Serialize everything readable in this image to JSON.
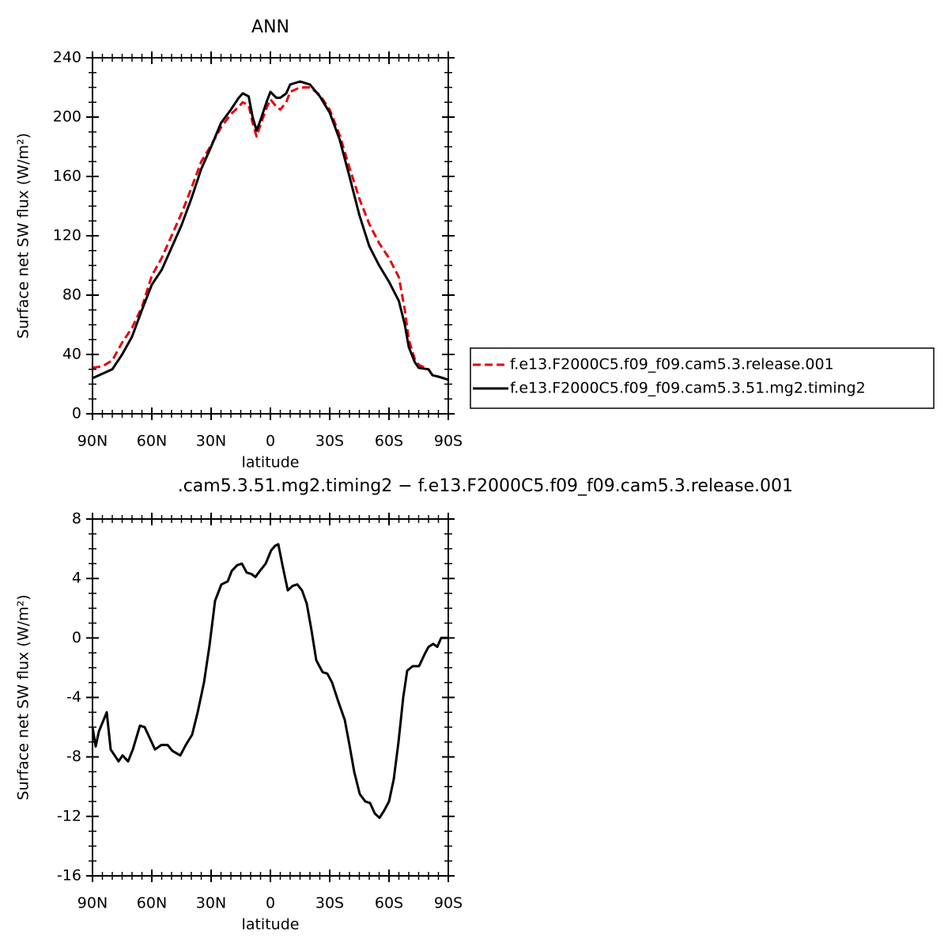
{
  "chart_data": [
    {
      "type": "line",
      "title": "ANN",
      "xlabel": "latitude",
      "ylabel": "Surface net SW flux (W/m²)",
      "x": [
        90,
        85,
        80,
        75,
        70,
        65,
        60,
        55,
        50,
        45,
        40,
        35,
        30,
        25,
        20,
        16,
        14,
        11,
        9,
        7,
        5,
        2,
        0,
        -3,
        -5,
        -8,
        -10,
        -15,
        -20,
        -25,
        -30,
        -35,
        -40,
        -45,
        -50,
        -55,
        -60,
        -65,
        -68,
        -70,
        -73,
        -75,
        -80,
        -82,
        -85,
        -90
      ],
      "series": [
        {
          "name": "f.e13.F2000C5.f09_f09.cam5.3.release.001",
          "color": "#e8000b",
          "dashed": true,
          "values": [
            31,
            32,
            36,
            48,
            58,
            72,
            93,
            105,
            120,
            135,
            152,
            170,
            181,
            193,
            202,
            207,
            210,
            208,
            196,
            187,
            195,
            206,
            212,
            207,
            205,
            210,
            217,
            220,
            220,
            215,
            205,
            188,
            166,
            145,
            128,
            115,
            105,
            92,
            70,
            50,
            37,
            33,
            30,
            26,
            25,
            23
          ]
        },
        {
          "name": "f.e13.F2000C5.f09_f09.cam5.3.51.mg2.timing2",
          "color": "#000000",
          "dashed": false,
          "values": [
            24,
            27,
            30,
            40,
            52,
            70,
            87,
            97,
            112,
            127,
            145,
            165,
            180,
            196,
            205,
            213,
            216,
            214,
            200,
            191,
            198,
            210,
            217,
            213,
            213,
            216,
            222,
            224,
            222,
            214,
            203,
            185,
            160,
            134,
            113,
            100,
            89,
            76,
            60,
            45,
            35,
            31,
            30,
            26,
            25,
            23
          ]
        }
      ],
      "xlim": [
        90,
        -90
      ],
      "xticks": [
        {
          "value": 90,
          "label": "90N"
        },
        {
          "value": 60,
          "label": "60N"
        },
        {
          "value": 30,
          "label": "30N"
        },
        0,
        {
          "value": -30,
          "label": "30S"
        },
        {
          "value": -60,
          "label": "60S"
        },
        {
          "value": -90,
          "label": "90S"
        }
      ],
      "ylim": [
        0,
        240
      ],
      "yticks": [
        0,
        40,
        80,
        120,
        160,
        200,
        240
      ]
    },
    {
      "type": "line",
      "title": ".cam5.3.51.mg2.timing2 − f.e13.F2000C5.f09_f09.cam5.3.release.001",
      "xlabel": "latitude",
      "ylabel": "Surface net SW flux (W/m²)",
      "x": [
        90,
        88.4,
        86.8,
        82.8,
        80.8,
        76.8,
        74.8,
        72,
        69.6,
        66,
        63.6,
        60.8,
        58.4,
        55.2,
        52,
        49.6,
        45.6,
        42.8,
        39.6,
        36.8,
        33.6,
        30.8,
        28,
        24.8,
        21.6,
        19.6,
        16.8,
        14.4,
        12,
        9.6,
        7.6,
        4.8,
        2.4,
        -0.4,
        -2.4,
        -4,
        -6.4,
        -8.8,
        -11.2,
        -13.6,
        -16,
        -18.4,
        -20.8,
        -23.2,
        -26.4,
        -28.8,
        -31.2,
        -34.4,
        -37.6,
        -40,
        -42.4,
        -45.2,
        -48,
        -50.4,
        -52.8,
        -55.2,
        -57.6,
        -60,
        -62.4,
        -64.8,
        -67.2,
        -69.2,
        -72,
        -75.2,
        -78,
        -80,
        -82.4,
        -84.4,
        -86.4,
        -90
      ],
      "series": [
        {
          "color": "#000000",
          "dashed": false,
          "values": [
            -6,
            -7.3,
            -6.3,
            -5,
            -7.5,
            -8.3,
            -7.9,
            -8.3,
            -7.5,
            -5.9,
            -6,
            -6.8,
            -7.5,
            -7.2,
            -7.2,
            -7.6,
            -7.9,
            -7.2,
            -6.5,
            -5,
            -3,
            -0.5,
            2.5,
            3.6,
            3.8,
            4.5,
            4.9,
            5,
            4.4,
            4.3,
            4.1,
            4.6,
            5,
            5.9,
            6.2,
            6.3,
            4.7,
            3.2,
            3.5,
            3.6,
            3.2,
            2.3,
            0.5,
            -1.5,
            -2.3,
            -2.4,
            -3,
            -4.3,
            -5.5,
            -7.2,
            -9,
            -10.5,
            -11,
            -11.1,
            -11.8,
            -12.1,
            -11.6,
            -11,
            -9.5,
            -7,
            -4,
            -2.2,
            -1.9,
            -1.9,
            -1.1,
            -0.6,
            -0.4,
            -0.6,
            0,
            0
          ]
        }
      ],
      "xlim": [
        90,
        -90
      ],
      "xticks": [
        {
          "value": 90,
          "label": "90N"
        },
        {
          "value": 60,
          "label": "60N"
        },
        {
          "value": 30,
          "label": "30N"
        },
        0,
        {
          "value": -30,
          "label": "30S"
        },
        {
          "value": -60,
          "label": "60S"
        },
        {
          "value": -90,
          "label": "90S"
        }
      ],
      "ylim": [
        -16,
        8
      ],
      "yticks": [
        -16,
        -12,
        -8,
        -4,
        0,
        4,
        8
      ]
    }
  ]
}
